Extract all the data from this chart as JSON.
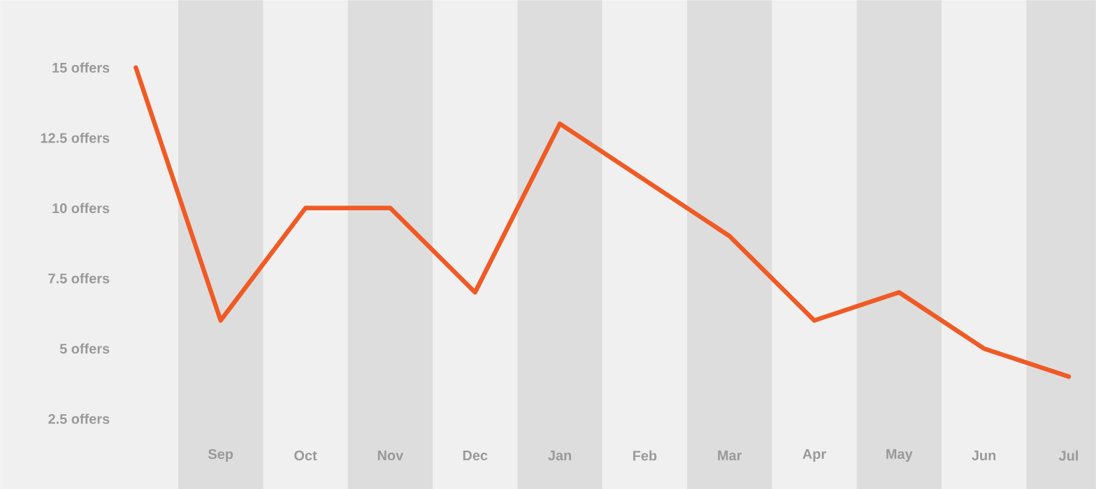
{
  "chart_data": {
    "type": "line",
    "categories": [
      null,
      "Sep",
      "Oct",
      "Nov",
      "Dec",
      "Jan",
      "Feb",
      "Mar",
      "Apr",
      "May",
      "Jun",
      "Jul"
    ],
    "series": [
      {
        "color": "#f05a24",
        "values": [
          15,
          6,
          10,
          10,
          7,
          13,
          11,
          9,
          6,
          7,
          5,
          4
        ]
      }
    ],
    "ylim": [
      0,
      17.4
    ],
    "yticks": [
      {
        "value": 2.5,
        "label": "2.5 offers"
      },
      {
        "value": 5,
        "label": "5 offers"
      },
      {
        "value": 7.5,
        "label": "7.5 offers"
      },
      {
        "value": 10,
        "label": "10 offers"
      },
      {
        "value": 12.5,
        "label": "12.5 offers"
      },
      {
        "value": 15,
        "label": "15 offers"
      }
    ],
    "bands": [
      {
        "axis": "x",
        "from": "Sep",
        "to": "Sep",
        "color": "#dddddd"
      },
      {
        "axis": "x",
        "from": "Nov",
        "to": "Nov",
        "color": "#dddddd"
      },
      {
        "axis": "x",
        "from": "Jan",
        "to": "Jan",
        "color": "#dddddd"
      },
      {
        "axis": "x",
        "from": "Mar",
        "to": "Mar",
        "color": "#dddddd"
      },
      {
        "axis": "x",
        "from": "May",
        "to": "May",
        "color": "#dddddd"
      },
      {
        "axis": "x",
        "from": "Jul",
        "to": "Jul",
        "color": "#dddddd"
      }
    ]
  }
}
